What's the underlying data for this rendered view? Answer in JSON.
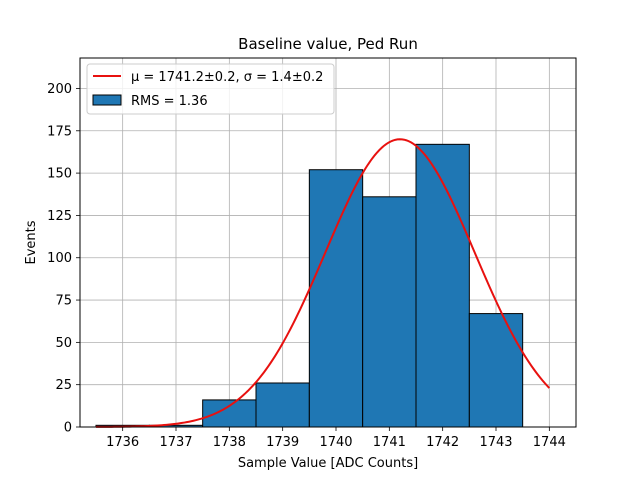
{
  "chart_data": {
    "type": "bar",
    "title": "Baseline value, Ped Run",
    "xlabel": "Sample Value [ADC Counts]",
    "ylabel": "Events",
    "xlim": [
      1735.2,
      1744.5
    ],
    "ylim": [
      0,
      218
    ],
    "xticks": [
      1736,
      1737,
      1738,
      1739,
      1740,
      1741,
      1742,
      1743,
      1744
    ],
    "yticks": [
      0,
      25,
      50,
      75,
      100,
      125,
      150,
      175,
      200
    ],
    "grid": true,
    "legend_position": "top-left",
    "histogram": {
      "name": "RMS = 1.36",
      "color": "#1f77b4",
      "bin_edges": [
        1735.5,
        1736.5,
        1737.5,
        1738.5,
        1739.5,
        1740.5,
        1741.5,
        1742.5,
        1743.5
      ],
      "values": [
        1,
        1,
        16,
        26,
        152,
        136,
        167,
        67
      ]
    },
    "fit": {
      "name": "μ = 1741.2±0.2, σ = 1.4±0.2",
      "color": "#e8110f",
      "mu": 1741.2,
      "sigma": 1.4,
      "amplitude": 170,
      "x_range": [
        1735.5,
        1744.0
      ]
    },
    "legend": [
      {
        "label": "μ = 1741.2±0.2, σ = 1.4±0.2",
        "kind": "line"
      },
      {
        "label": "RMS = 1.36",
        "kind": "patch"
      }
    ]
  }
}
